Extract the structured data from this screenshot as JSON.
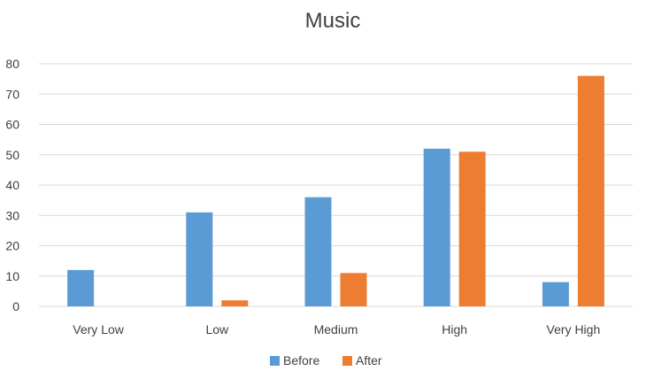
{
  "chart_data": {
    "type": "bar",
    "title": "Music",
    "xlabel": "",
    "ylabel": "",
    "categories": [
      "Very Low",
      "Low",
      "Medium",
      "High",
      "Very High"
    ],
    "series": [
      {
        "name": "Before",
        "color": "#5b9bd5",
        "values": [
          12,
          31,
          36,
          52,
          8
        ]
      },
      {
        "name": "After",
        "color": "#ed7d31",
        "values": [
          0,
          2,
          11,
          51,
          76
        ]
      }
    ],
    "ylim": [
      0,
      80
    ],
    "yticks": [
      0,
      10,
      20,
      30,
      40,
      50,
      60,
      70,
      80
    ],
    "grid": true,
    "legend_position": "bottom"
  }
}
